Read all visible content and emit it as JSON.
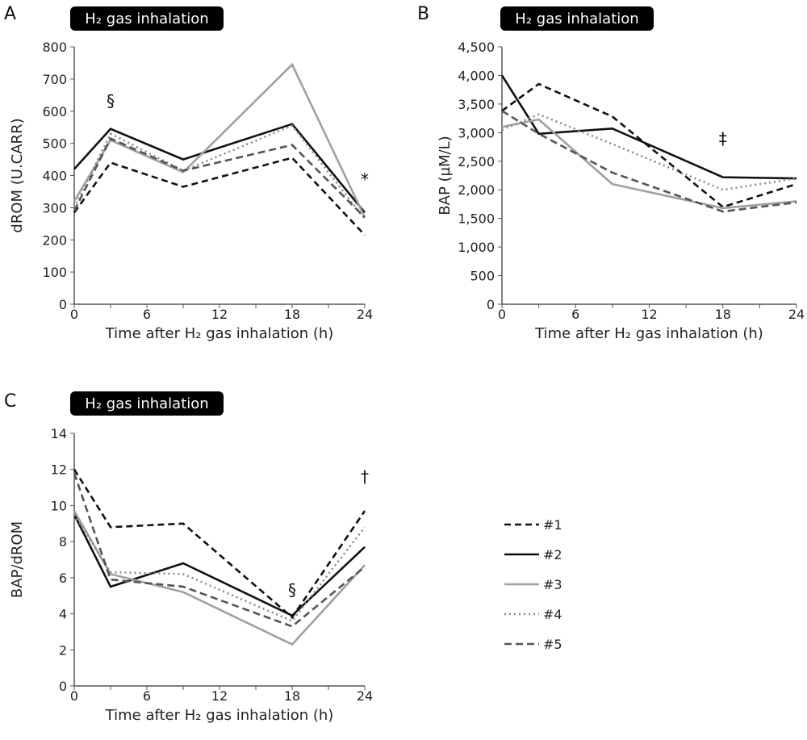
{
  "series_styles": [
    {
      "name": "#1",
      "color": "#111111",
      "dash": "8,5"
    },
    {
      "name": "#2",
      "color": "#111111",
      "dash": ""
    },
    {
      "name": "#3",
      "color": "#a0a0a0",
      "dash": ""
    },
    {
      "name": "#4",
      "color": "#8a8a8a",
      "dash": "2,4"
    },
    {
      "name": "#5",
      "color": "#555555",
      "dash": "9,5"
    }
  ],
  "legend": [
    "#1",
    "#2",
    "#3",
    "#4",
    "#5"
  ],
  "chart_data": [
    {
      "type": "line",
      "panel": "A",
      "title": "H₂ gas inhalation",
      "xlabel": "Time after H₂ gas inhalation (h)",
      "ylabel": "dROM (U.CARR)",
      "x": [
        0,
        3,
        9,
        18,
        24
      ],
      "xticks": [
        0,
        6,
        12,
        18,
        24
      ],
      "xlim": [
        0,
        24
      ],
      "ylim": [
        0,
        800
      ],
      "yticks": [
        "0",
        "100",
        "200",
        "300",
        "400",
        "500",
        "600",
        "700",
        "800"
      ],
      "ytick_values": [
        0,
        100,
        200,
        300,
        400,
        500,
        600,
        700,
        800
      ],
      "series": [
        {
          "name": "#1",
          "values": [
            285,
            440,
            365,
            455,
            215
          ]
        },
        {
          "name": "#2",
          "values": [
            420,
            545,
            450,
            560,
            285
          ]
        },
        {
          "name": "#3",
          "values": [
            320,
            510,
            410,
            745,
            270
          ]
        },
        {
          "name": "#4",
          "values": [
            300,
            530,
            415,
            555,
            265
          ]
        },
        {
          "name": "#5",
          "values": [
            290,
            515,
            415,
            495,
            270
          ]
        }
      ],
      "annotations": [
        {
          "text": "§",
          "x": 3,
          "y": 615
        },
        {
          "text": "*",
          "x": 24,
          "y": 370
        }
      ]
    },
    {
      "type": "line",
      "panel": "B",
      "title": "H₂ gas inhalation",
      "xlabel": "Time after H₂ gas inhalation (h)",
      "ylabel": "BAP (µM/L)",
      "x": [
        0,
        3,
        9,
        18,
        24
      ],
      "xticks": [
        0,
        6,
        12,
        18,
        24
      ],
      "xlim": [
        0,
        24
      ],
      "ylim": [
        0,
        4500
      ],
      "yticks": [
        "0",
        "500",
        "1,000",
        "1,500",
        "2,000",
        "2,500",
        "3,000",
        "3,500",
        "4,000",
        "4,500"
      ],
      "ytick_values": [
        0,
        500,
        1000,
        1500,
        2000,
        2500,
        3000,
        3500,
        4000,
        4500
      ],
      "series": [
        {
          "name": "#1",
          "values": [
            3380,
            3850,
            3280,
            1700,
            2100
          ]
        },
        {
          "name": "#2",
          "values": [
            4000,
            2980,
            3070,
            2220,
            2200
          ]
        },
        {
          "name": "#3",
          "values": [
            3100,
            3230,
            2100,
            1680,
            1800
          ]
        },
        {
          "name": "#4",
          "values": [
            3050,
            3320,
            2800,
            2000,
            2200
          ]
        },
        {
          "name": "#5",
          "values": [
            3380,
            2980,
            2300,
            1620,
            1780
          ]
        }
      ],
      "annotations": [
        {
          "text": "‡",
          "x": 18,
          "y": 2800
        }
      ]
    },
    {
      "type": "line",
      "panel": "C",
      "title": "H₂ gas inhalation",
      "xlabel": "Time after H₂ gas inhalation (h)",
      "ylabel": "BAP/dROM",
      "x": [
        0,
        3,
        9,
        18,
        24
      ],
      "xticks": [
        0,
        6,
        12,
        18,
        24
      ],
      "xlim": [
        0,
        24
      ],
      "ylim": [
        0,
        14
      ],
      "yticks": [
        "0",
        "2",
        "4",
        "6",
        "8",
        "10",
        "12",
        "14"
      ],
      "ytick_values": [
        0,
        2,
        4,
        6,
        8,
        10,
        12,
        14
      ],
      "series": [
        {
          "name": "#1",
          "values": [
            12,
            8.8,
            9.0,
            3.8,
            9.7
          ]
        },
        {
          "name": "#2",
          "values": [
            9.5,
            5.5,
            6.8,
            3.9,
            7.7
          ]
        },
        {
          "name": "#3",
          "values": [
            9.7,
            6.2,
            5.2,
            2.3,
            6.7
          ]
        },
        {
          "name": "#4",
          "values": [
            9.5,
            6.3,
            6.2,
            3.6,
            8.8
          ]
        },
        {
          "name": "#5",
          "values": [
            11.8,
            5.9,
            5.5,
            3.3,
            6.6
          ]
        }
      ],
      "annotations": [
        {
          "text": "§",
          "x": 18,
          "y": 5.0
        },
        {
          "text": "†",
          "x": 24,
          "y": 11.3
        }
      ]
    }
  ]
}
